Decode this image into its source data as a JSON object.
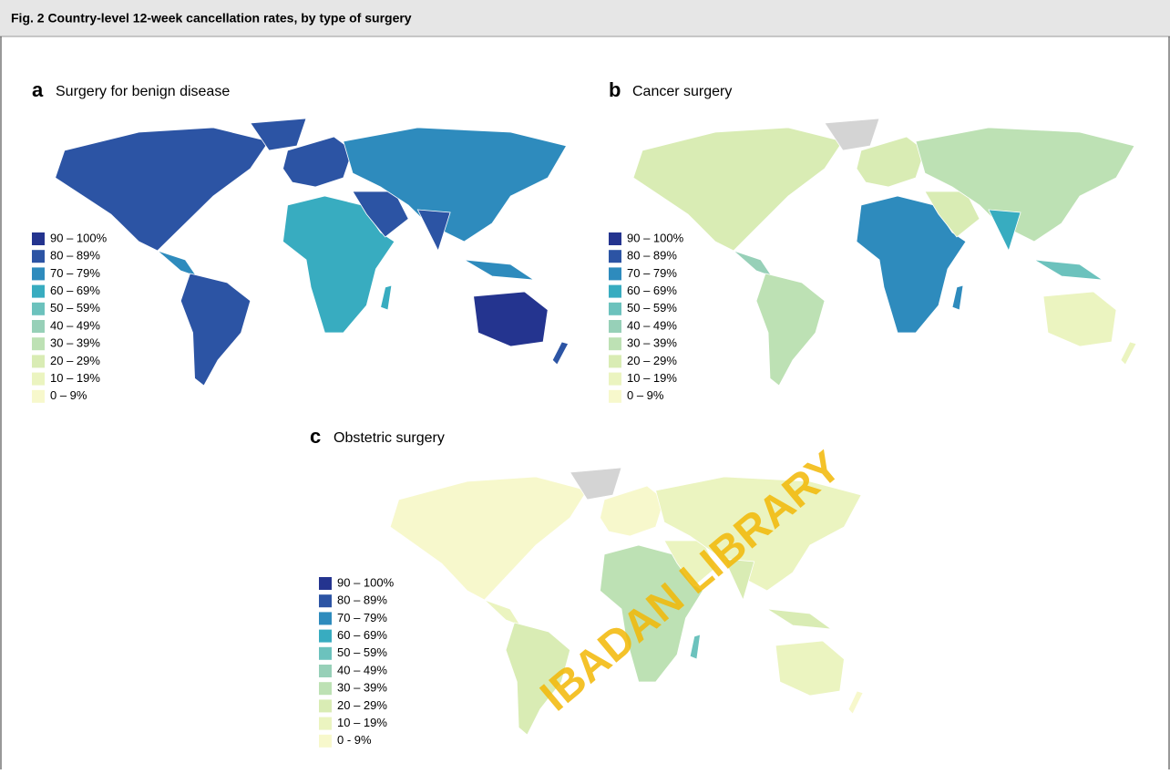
{
  "header": {
    "title": "Fig. 2 Country-level 12-week cancellation rates, by type of surgery"
  },
  "panels": [
    {
      "letter": "a",
      "title": "Surgery for benign disease",
      "legend": {
        "labels": [
          "90 – 100%",
          "80 – 89%",
          "70 – 79%",
          "60 – 69%",
          "50 – 59%",
          "40 – 49%",
          "30 – 39%",
          "20 – 29%",
          "10 – 19%",
          "0 – 9%"
        ],
        "colors": [
          "#24348f",
          "#2c54a4",
          "#2e8bbd",
          "#38acc0",
          "#6cc2bd",
          "#97d0b8",
          "#bde1b4",
          "#d9ecb4",
          "#ebf4c0",
          "#f7f8cc"
        ]
      }
    },
    {
      "letter": "b",
      "title": "Cancer surgery",
      "legend": {
        "labels": [
          "90 – 100%",
          "80 – 89%",
          "70 – 79%",
          "60 – 69%",
          "50 – 59%",
          "40 – 49%",
          "30 – 39%",
          "20 – 29%",
          "10 – 19%",
          "0 – 9%"
        ],
        "colors": [
          "#24348f",
          "#2c54a4",
          "#2e8bbd",
          "#38acc0",
          "#6cc2bd",
          "#97d0b8",
          "#bde1b4",
          "#d9ecb4",
          "#ebf4c0",
          "#f7f8cc"
        ]
      }
    },
    {
      "letter": "c",
      "title": "Obstetric surgery",
      "legend": {
        "labels": [
          "90 – 100%",
          "80 – 89%",
          "70 – 79%",
          "60 – 69%",
          "50 – 59%",
          "40 – 49%",
          "30 – 39%",
          "20 – 29%",
          "10 – 19%",
          "0 - 9%"
        ],
        "colors": [
          "#24348f",
          "#2c54a4",
          "#2e8bbd",
          "#38acc0",
          "#6cc2bd",
          "#97d0b8",
          "#bde1b4",
          "#d9ecb4",
          "#ebf4c0",
          "#f7f8cc"
        ]
      }
    }
  ],
  "watermark": "IBADAN LIBRARY"
}
